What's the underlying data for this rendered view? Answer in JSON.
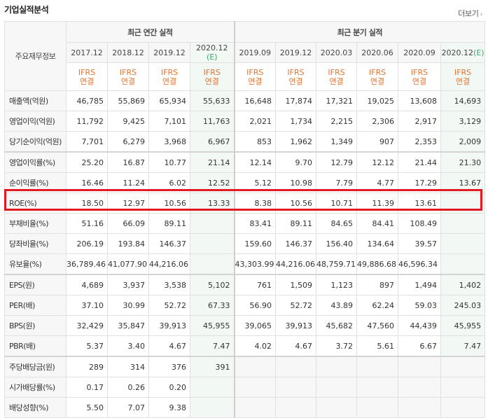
{
  "title": "기업실적분석",
  "more_link": "더보기",
  "header": {
    "corner_label": "주요재무정보",
    "annual_group": "최근 연간 실적",
    "quarterly_group": "최근 분기 실적",
    "estimate_mark": "(E)",
    "ifrs_line1": "IFRS",
    "ifrs_line2": "연결",
    "annual_periods": [
      "2017.12",
      "2018.12",
      "2019.12",
      "2020.12"
    ],
    "quarterly_periods": [
      "2019.09",
      "2019.12",
      "2020.03",
      "2020.06",
      "2020.09",
      "2020.12"
    ]
  },
  "rows": [
    {
      "label": "매출액(억원)",
      "values": [
        "46,785",
        "55,869",
        "65,934",
        "55,633",
        "16,648",
        "17,874",
        "17,321",
        "19,025",
        "13,608",
        "14,693"
      ]
    },
    {
      "label": "영업이익(억원)",
      "values": [
        "11,792",
        "9,425",
        "7,101",
        "11,763",
        "2,021",
        "1,734",
        "2,215",
        "2,306",
        "2,917",
        "3,129"
      ]
    },
    {
      "label": "당기순이익(억원)",
      "values": [
        "7,701",
        "6,279",
        "3,968",
        "6,967",
        "853",
        "1,962",
        "1,349",
        "907",
        "2,353",
        "2,009"
      ]
    },
    {
      "label": "영업이익률(%)",
      "values": [
        "25.20",
        "16.87",
        "10.77",
        "21.14",
        "12.14",
        "9.70",
        "12.79",
        "12.12",
        "21.44",
        "21.30"
      ]
    },
    {
      "label": "순이익률(%)",
      "values": [
        "16.46",
        "11.24",
        "6.02",
        "12.52",
        "5.12",
        "10.98",
        "7.79",
        "4.77",
        "17.29",
        "13.67"
      ]
    },
    {
      "label": "ROE(%)",
      "values": [
        "18.50",
        "12.97",
        "10.56",
        "13.33",
        "8.38",
        "10.56",
        "10.71",
        "11.39",
        "13.61",
        ""
      ]
    },
    {
      "label": "부채비율(%)",
      "values": [
        "51.16",
        "66.09",
        "89.11",
        "",
        "83.41",
        "89.11",
        "84.65",
        "84.41",
        "108.49",
        ""
      ]
    },
    {
      "label": "당좌비율(%)",
      "values": [
        "206.19",
        "193.84",
        "146.37",
        "",
        "159.60",
        "146.37",
        "156.40",
        "134.64",
        "39.57",
        ""
      ]
    },
    {
      "label": "유보율(%)",
      "values": [
        "36,789.46",
        "41,077.90",
        "44,216.06",
        "",
        "43,303.99",
        "44,216.06",
        "48,759.71",
        "49,886.68",
        "46,596.34",
        ""
      ]
    },
    {
      "label": "EPS(원)",
      "values": [
        "4,689",
        "3,937",
        "3,538",
        "5,102",
        "761",
        "1,509",
        "1,123",
        "897",
        "1,494",
        "1,402"
      ]
    },
    {
      "label": "PER(배)",
      "values": [
        "37.10",
        "30.99",
        "52.72",
        "67.33",
        "56.90",
        "52.72",
        "43.89",
        "62.24",
        "59.03",
        "245.03"
      ]
    },
    {
      "label": "BPS(원)",
      "values": [
        "32,429",
        "35,847",
        "39,913",
        "45,955",
        "39,065",
        "39,913",
        "45,682",
        "47,560",
        "44,439",
        "45,955"
      ]
    },
    {
      "label": "PBR(배)",
      "values": [
        "5.37",
        "3.40",
        "4.67",
        "7.47",
        "4.02",
        "4.67",
        "3.72",
        "5.61",
        "6.67",
        "7.47"
      ]
    },
    {
      "label": "주당배당금(원)",
      "values": [
        "289",
        "314",
        "376",
        "391",
        "",
        "",
        "",
        "",
        "",
        ""
      ]
    },
    {
      "label": "시가배당률(%)",
      "values": [
        "0.17",
        "0.26",
        "0.20",
        "",
        "",
        "",
        "",
        "",
        "",
        ""
      ]
    },
    {
      "label": "배당성향(%)",
      "values": [
        "5.50",
        "7.07",
        "9.38",
        "",
        "",
        "",
        "",
        "",
        "",
        ""
      ]
    }
  ],
  "colors": {
    "ifrs_text": "#e8712a",
    "estimate_text": "#3aa76d",
    "highlight_border": "#e01b24",
    "header_bg": "#f7f7f7"
  }
}
